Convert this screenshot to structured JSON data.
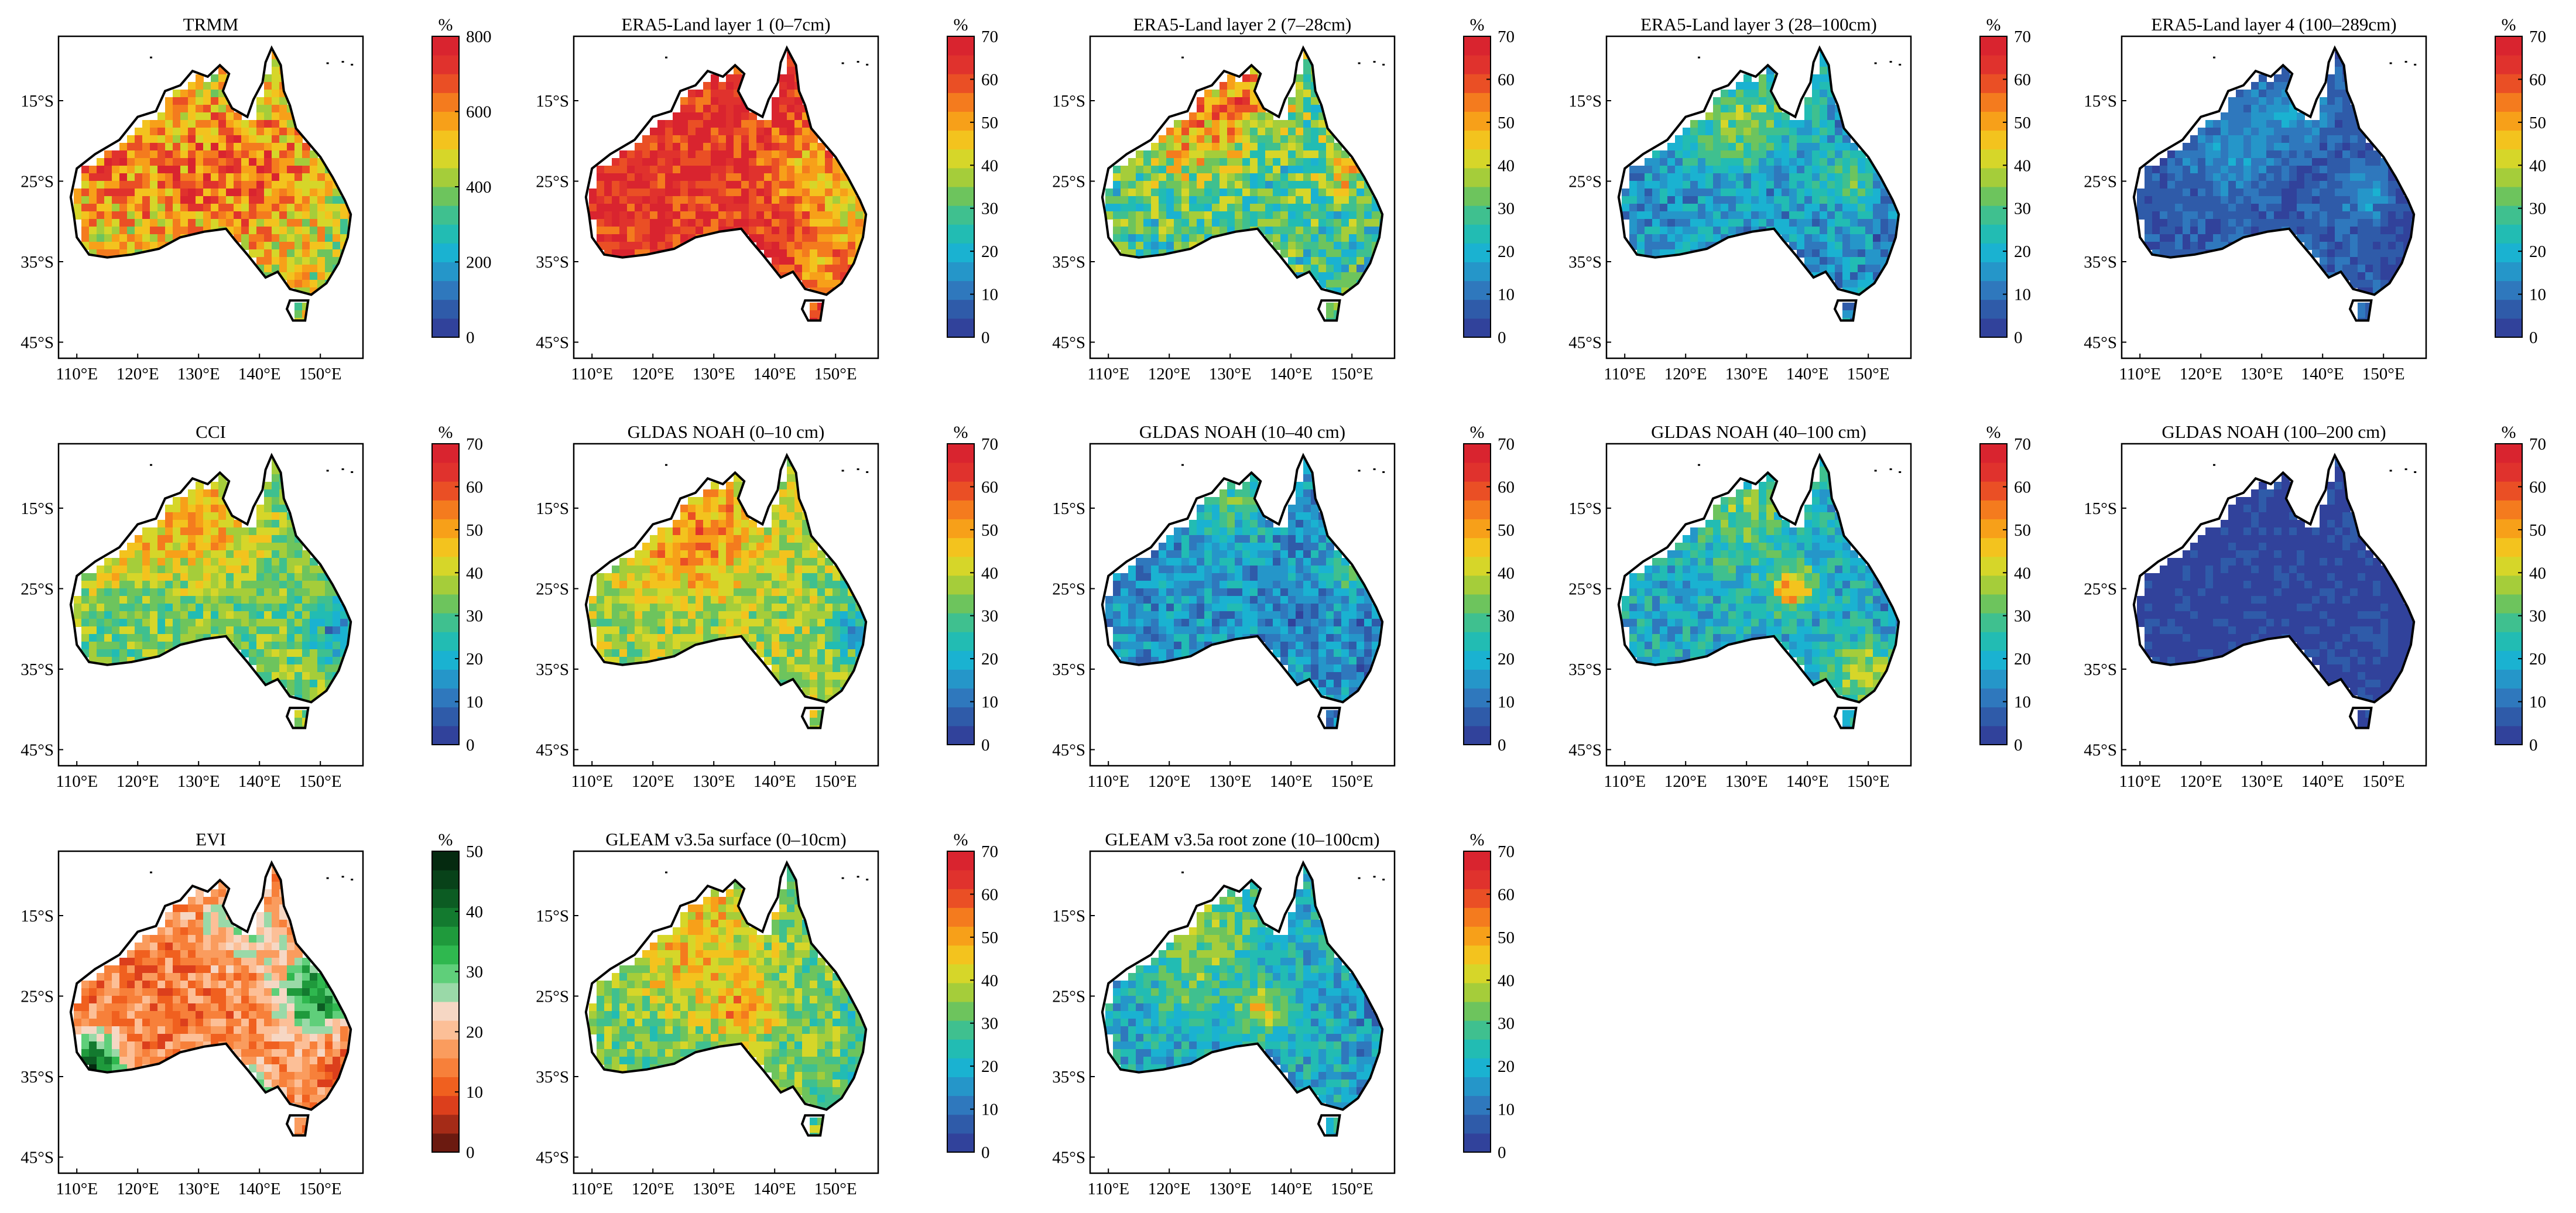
{
  "lon_ticks": [
    "110°E",
    "120°E",
    "130°E",
    "140°E",
    "150°E"
  ],
  "lat_ticks": [
    "15°S",
    "25°S",
    "35°S",
    "45°S"
  ],
  "color_scales": {
    "trmm": {
      "ticks": [
        "0",
        "200",
        "400",
        "600",
        "800"
      ],
      "colors": [
        "#31429b",
        "#2f5ba9",
        "#2f78bd",
        "#2596c9",
        "#1ab2d1",
        "#22bcb3",
        "#3fc08f",
        "#6dc45d",
        "#a5cd3a",
        "#d6d629",
        "#f3c31e",
        "#f7a019",
        "#f47b1e",
        "#ea4f25",
        "#e0322d",
        "#d9242f"
      ]
    },
    "moisture": {
      "ticks": [
        "0",
        "10",
        "20",
        "30",
        "40",
        "50",
        "60",
        "70"
      ],
      "colors": [
        "#31429b",
        "#2f5ba9",
        "#2f78bd",
        "#2596c9",
        "#1ab2d1",
        "#22bcb3",
        "#3fc08f",
        "#6dc45d",
        "#a5cd3a",
        "#d6d629",
        "#f3c31e",
        "#f7a019",
        "#f47b1e",
        "#ea4f25",
        "#e0322d",
        "#d9242f"
      ]
    },
    "evi": {
      "ticks": [
        "0",
        "10",
        "20",
        "30",
        "40",
        "50"
      ],
      "colors": [
        "#6b1a10",
        "#a52b17",
        "#dc3f1c",
        "#f0601f",
        "#f7803a",
        "#fa9c5e",
        "#fcbf97",
        "#f6d7c4",
        "#9ad9a8",
        "#5fcf7a",
        "#2fb84f",
        "#1f9a3c",
        "#137a2f",
        "#0c5c23",
        "#084219",
        "#052a10"
      ]
    }
  },
  "panels": [
    {
      "title": "TRMM",
      "unit": "%",
      "scale": "trmm",
      "base": 9,
      "spread": 3,
      "hot": [
        [
          0.62,
          0.4,
          0.16,
          3
        ],
        [
          0.35,
          0.45,
          0.2,
          2
        ],
        [
          0.12,
          0.42,
          0.1,
          2
        ]
      ]
    },
    {
      "title": "ERA5-Land layer 1 (0–7cm)",
      "unit": "%",
      "scale": "moisture",
      "base": 14,
      "spread": 2,
      "hot": [
        [
          0.75,
          0.4,
          0.1,
          -3
        ],
        [
          0.88,
          0.55,
          0.08,
          -4
        ],
        [
          0.8,
          0.75,
          0.06,
          -3
        ]
      ]
    },
    {
      "title": "ERA5-Land layer 2 (7–28cm)",
      "unit": "%",
      "scale": "moisture",
      "base": 6,
      "spread": 3,
      "hot": [
        [
          0.5,
          0.15,
          0.12,
          5
        ],
        [
          0.3,
          0.3,
          0.12,
          4
        ],
        [
          0.85,
          0.4,
          0.08,
          4
        ]
      ]
    },
    {
      "title": "ERA5-Land layer 3 (28–100cm)",
      "unit": "%",
      "scale": "moisture",
      "base": 3,
      "spread": 2,
      "hot": [
        [
          0.4,
          0.25,
          0.12,
          4
        ],
        [
          0.8,
          0.45,
          0.08,
          3
        ],
        [
          0.6,
          0.15,
          0.08,
          3
        ]
      ]
    },
    {
      "title": "ERA5-Land layer 4 (100–289cm)",
      "unit": "%",
      "scale": "moisture",
      "base": 1,
      "spread": 1,
      "hot": [
        [
          0.35,
          0.35,
          0.1,
          2
        ],
        [
          0.55,
          0.2,
          0.08,
          2
        ],
        [
          0.8,
          0.5,
          0.06,
          2
        ]
      ]
    },
    {
      "title": "CCI",
      "unit": "%",
      "scale": "moisture",
      "base": 7,
      "spread": 2,
      "hot": [
        [
          0.45,
          0.2,
          0.14,
          4
        ],
        [
          0.2,
          0.35,
          0.1,
          2
        ],
        [
          0.9,
          0.6,
          0.06,
          -3
        ]
      ]
    },
    {
      "title": "GLDAS NOAH (0–10 cm)",
      "unit": "%",
      "scale": "moisture",
      "base": 8,
      "spread": 2,
      "hot": [
        [
          0.45,
          0.2,
          0.14,
          3
        ],
        [
          0.3,
          0.35,
          0.12,
          2
        ],
        [
          0.9,
          0.6,
          0.06,
          -3
        ]
      ]
    },
    {
      "title": "GLDAS NOAH (10–40 cm)",
      "unit": "%",
      "scale": "moisture",
      "base": 3,
      "spread": 2,
      "hot": [
        [
          0.45,
          0.15,
          0.1,
          3
        ],
        [
          0.85,
          0.4,
          0.06,
          3
        ],
        [
          0.65,
          0.55,
          0.08,
          -1
        ]
      ]
    },
    {
      "title": "GLDAS NOAH (40–100 cm)",
      "unit": "%",
      "scale": "moisture",
      "base": 4,
      "spread": 2,
      "hot": [
        [
          0.6,
          0.45,
          0.05,
          8
        ],
        [
          0.85,
          0.75,
          0.08,
          5
        ],
        [
          0.45,
          0.2,
          0.12,
          3
        ]
      ]
    },
    {
      "title": "GLDAS NOAH (100–200 cm)",
      "unit": "%",
      "scale": "moisture",
      "base": 0,
      "spread": 1,
      "hot": [
        [
          0.85,
          0.6,
          0.05,
          1
        ]
      ]
    },
    {
      "title": "EVI",
      "unit": "%",
      "scale": "evi",
      "base": 4,
      "spread": 2,
      "hot": [
        [
          0.85,
          0.45,
          0.1,
          8
        ],
        [
          0.08,
          0.7,
          0.08,
          10
        ],
        [
          0.55,
          0.85,
          0.1,
          8
        ],
        [
          0.6,
          0.2,
          0.1,
          4
        ]
      ]
    },
    {
      "title": "GLEAM v3.5a surface (0–10cm)",
      "unit": "%",
      "scale": "moisture",
      "base": 7,
      "spread": 2,
      "hot": [
        [
          0.35,
          0.3,
          0.14,
          3
        ],
        [
          0.55,
          0.5,
          0.08,
          4
        ],
        [
          0.5,
          0.15,
          0.1,
          2
        ]
      ]
    },
    {
      "title": "GLEAM v3.5a root zone (10–100cm)",
      "unit": "%",
      "scale": "moisture",
      "base": 4,
      "spread": 2,
      "hot": [
        [
          0.55,
          0.5,
          0.06,
          5
        ],
        [
          0.4,
          0.2,
          0.12,
          3
        ],
        [
          0.3,
          0.4,
          0.1,
          2
        ]
      ]
    }
  ]
}
